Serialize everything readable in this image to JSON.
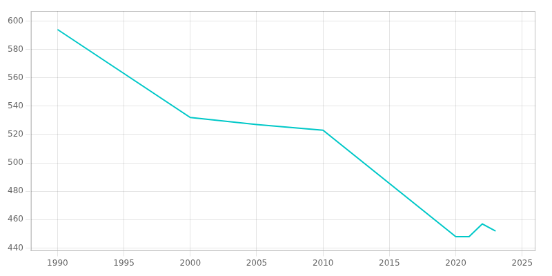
{
  "chart_data": {
    "type": "line",
    "x": [
      1990,
      2000,
      2005,
      2010,
      2020,
      2021,
      2022,
      2023
    ],
    "values": [
      594,
      532,
      527,
      523,
      448,
      448,
      457,
      452
    ],
    "color": "#00C8C8",
    "xlim": [
      1988,
      2026
    ],
    "ylim": [
      438,
      607
    ],
    "xticks": [
      1990,
      1995,
      2000,
      2005,
      2010,
      2015,
      2020,
      2025
    ],
    "yticks": [
      440,
      460,
      480,
      500,
      520,
      540,
      560,
      580,
      600
    ],
    "grid": true
  }
}
